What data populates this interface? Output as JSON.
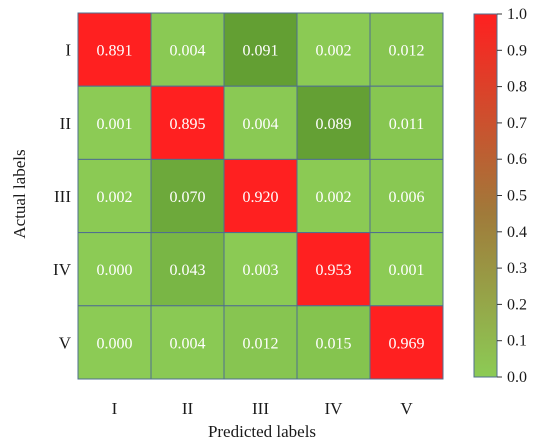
{
  "chart_data": {
    "type": "heatmap",
    "title": "",
    "xlabel": "Predicted labels",
    "ylabel": "Actual labels",
    "x_categories": [
      "I",
      "II",
      "III",
      "IV",
      "V"
    ],
    "y_categories": [
      "I",
      "II",
      "III",
      "IV",
      "V"
    ],
    "values": [
      [
        "0.891",
        "0.004",
        "0.091",
        "0.002",
        "0.012"
      ],
      [
        "0.001",
        "0.895",
        "0.004",
        "0.089",
        "0.011"
      ],
      [
        "0.002",
        "0.070",
        "0.920",
        "0.002",
        "0.006"
      ],
      [
        "0.000",
        "0.043",
        "0.003",
        "0.953",
        "0.001"
      ],
      [
        "0.000",
        "0.004",
        "0.012",
        "0.015",
        "0.969"
      ]
    ],
    "colorbar": {
      "range": [
        0,
        1
      ],
      "ticks": [
        "0.0",
        "0.1",
        "0.2",
        "0.3",
        "0.4",
        "0.5",
        "0.6",
        "0.7",
        "0.8",
        "0.9",
        "1.0"
      ],
      "colors": {
        "low": "#8ccb55",
        "mid": "#5f9b30",
        "high": "#ff2020"
      }
    },
    "colors": {
      "grid_line": "#4f6f8f",
      "cell_text": "#ffffff"
    }
  }
}
